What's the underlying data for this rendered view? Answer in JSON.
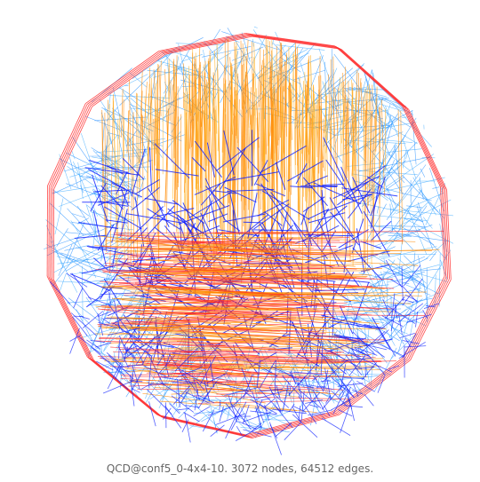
{
  "figure": {
    "caption": "QCD@conf5_0-4x4-10. 3072 nodes, 64512 edges.",
    "colors": {
      "red": "#ff2a2a",
      "orange": "#ff8a00",
      "light_orange": "#ffb020",
      "blue": "#0a1cff",
      "light_blue": "#1e8cff",
      "cyan_blue": "#3aa8ff"
    }
  }
}
